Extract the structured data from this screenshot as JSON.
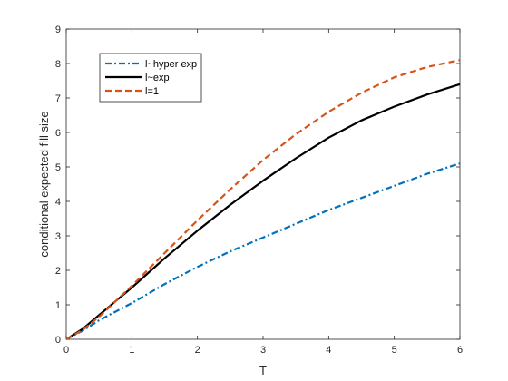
{
  "chart_data": {
    "type": "line",
    "title": "",
    "xlabel": "T",
    "ylabel": "conditional expected fill size",
    "xlim": [
      0,
      6
    ],
    "ylim": [
      0,
      9
    ],
    "xticks": [
      0,
      1,
      2,
      3,
      4,
      5,
      6
    ],
    "yticks": [
      0,
      1,
      2,
      3,
      4,
      5,
      6,
      7,
      8,
      9
    ],
    "grid": false,
    "legend_position": "top-left",
    "series": [
      {
        "name": "l~hyper exp",
        "color": "#0072BD",
        "style": "dash-dot",
        "x": [
          0,
          0.25,
          0.5,
          0.75,
          1,
          1.5,
          2,
          2.5,
          3,
          3.5,
          4,
          4.5,
          5,
          5.5,
          6
        ],
        "y": [
          0,
          0.25,
          0.55,
          0.8,
          1.05,
          1.6,
          2.1,
          2.55,
          2.95,
          3.35,
          3.75,
          4.1,
          4.45,
          4.8,
          5.1
        ]
      },
      {
        "name": "l~exp",
        "color": "#000000",
        "style": "solid",
        "x": [
          0,
          0.25,
          0.5,
          0.75,
          1,
          1.5,
          2,
          2.5,
          3,
          3.5,
          4,
          4.5,
          5,
          5.5,
          6
        ],
        "y": [
          0,
          0.3,
          0.7,
          1.1,
          1.5,
          2.35,
          3.15,
          3.9,
          4.6,
          5.25,
          5.85,
          6.35,
          6.75,
          7.1,
          7.4
        ]
      },
      {
        "name": "l=1",
        "color": "#D95319",
        "style": "dashed",
        "x": [
          0,
          0.25,
          0.5,
          0.75,
          1,
          1.5,
          2,
          2.5,
          3,
          3.5,
          4,
          4.5,
          5,
          5.5,
          6
        ],
        "y": [
          0,
          0.27,
          0.65,
          1.1,
          1.55,
          2.5,
          3.45,
          4.35,
          5.2,
          5.95,
          6.6,
          7.15,
          7.6,
          7.9,
          8.1
        ]
      }
    ]
  }
}
